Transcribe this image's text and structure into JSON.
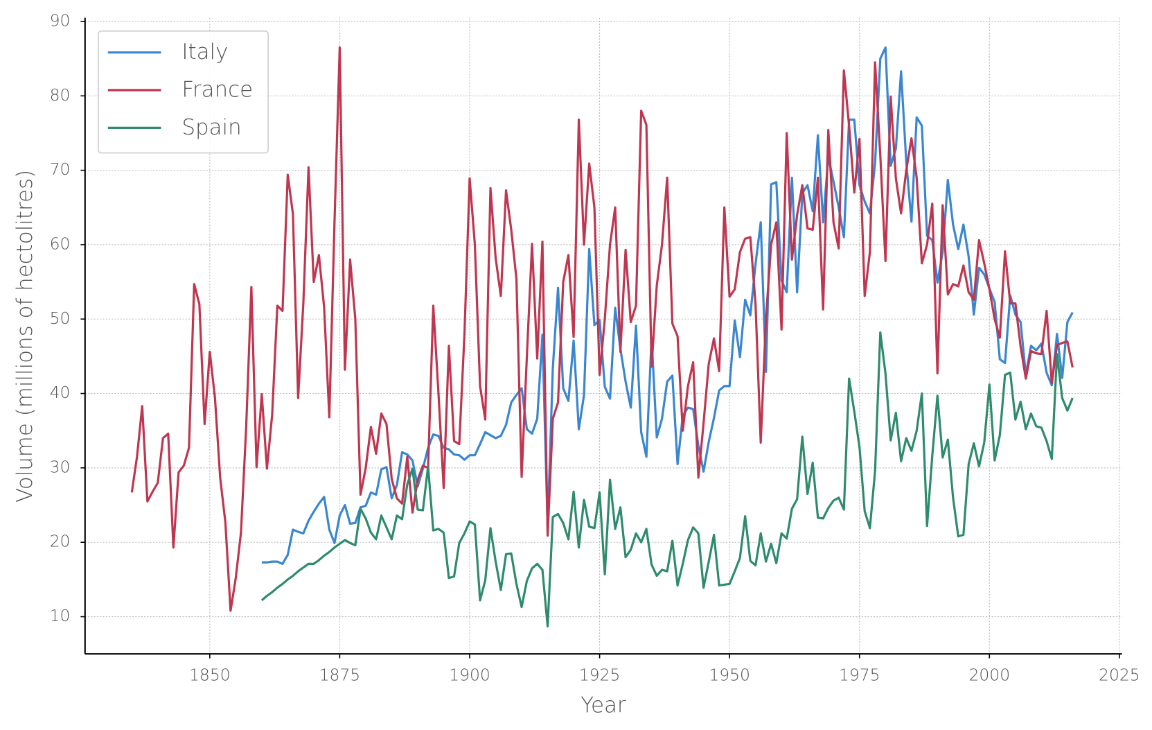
{
  "chart_data": {
    "type": "line",
    "xlabel": "Year",
    "ylabel": "Volume (millions of hectolitres)",
    "xlim": [
      1826,
      2025.5
    ],
    "ylim": [
      5,
      90.5
    ],
    "xticks": [
      1850,
      1875,
      1900,
      1925,
      1950,
      1975,
      2000,
      2025
    ],
    "yticks": [
      10,
      20,
      30,
      40,
      50,
      60,
      70,
      80,
      90
    ],
    "grid": true,
    "legend": "upper left",
    "x": [
      1835,
      1836,
      1837,
      1838,
      1839,
      1840,
      1841,
      1842,
      1843,
      1844,
      1845,
      1846,
      1847,
      1848,
      1849,
      1850,
      1851,
      1852,
      1853,
      1854,
      1855,
      1856,
      1857,
      1858,
      1859,
      1860,
      1861,
      1862,
      1863,
      1864,
      1865,
      1866,
      1867,
      1868,
      1869,
      1870,
      1871,
      1872,
      1873,
      1874,
      1875,
      1876,
      1877,
      1878,
      1879,
      1880,
      1881,
      1882,
      1883,
      1884,
      1885,
      1886,
      1887,
      1888,
      1889,
      1890,
      1891,
      1892,
      1893,
      1894,
      1895,
      1896,
      1897,
      1898,
      1899,
      1900,
      1901,
      1902,
      1903,
      1904,
      1905,
      1906,
      1907,
      1908,
      1909,
      1910,
      1911,
      1912,
      1913,
      1914,
      1915,
      1916,
      1917,
      1918,
      1919,
      1920,
      1921,
      1922,
      1923,
      1924,
      1925,
      1926,
      1927,
      1928,
      1929,
      1930,
      1931,
      1932,
      1933,
      1934,
      1935,
      1936,
      1937,
      1938,
      1939,
      1940,
      1941,
      1942,
      1943,
      1944,
      1945,
      1946,
      1947,
      1948,
      1949,
      1950,
      1951,
      1952,
      1953,
      1954,
      1955,
      1956,
      1957,
      1958,
      1959,
      1960,
      1961,
      1962,
      1963,
      1964,
      1965,
      1966,
      1967,
      1968,
      1969,
      1970,
      1971,
      1972,
      1973,
      1974,
      1975,
      1976,
      1977,
      1978,
      1979,
      1980,
      1981,
      1982,
      1983,
      1984,
      1985,
      1986,
      1987,
      1988,
      1989,
      1990,
      1991,
      1992,
      1993,
      1994,
      1995,
      1996,
      1997,
      1998,
      1999,
      2000,
      2001,
      2002,
      2003,
      2004,
      2005,
      2006,
      2007,
      2008,
      2009,
      2010,
      2011,
      2012,
      2013,
      2014,
      2015,
      2016
    ],
    "series": [
      {
        "name": "Italy",
        "color": "#3a86d0",
        "values": [
          null,
          null,
          null,
          null,
          null,
          null,
          null,
          null,
          null,
          null,
          null,
          null,
          null,
          null,
          null,
          null,
          null,
          null,
          null,
          null,
          null,
          null,
          null,
          null,
          null,
          17.3,
          17.3,
          17.4,
          17.4,
          17.1,
          18.3,
          21.7,
          21.4,
          21.2,
          22.9,
          24.1,
          25.2,
          26.1,
          21.7,
          19.9,
          23.6,
          25.0,
          22.5,
          22.6,
          24.7,
          24.9,
          26.7,
          26.4,
          29.8,
          30.1,
          25.9,
          27.7,
          32.1,
          31.8,
          31.0,
          27.5,
          29.9,
          32.7,
          34.5,
          34.3,
          32.7,
          32.5,
          31.8,
          31.7,
          31.1,
          31.7,
          31.7,
          33.2,
          34.8,
          34.4,
          34.0,
          34.3,
          35.8,
          38.8,
          39.8,
          40.7,
          35.2,
          34.6,
          36.6,
          47.9,
          22.0,
          43.4,
          54.2,
          40.7,
          39.0,
          47.1,
          35.2,
          39.8,
          59.4,
          49.2,
          49.9,
          40.9,
          39.3,
          51.5,
          46.0,
          41.6,
          38.1,
          49.1,
          34.8,
          31.5,
          47.5,
          34.1,
          36.6,
          41.6,
          42.4,
          30.5,
          37.0,
          38.1,
          37.9,
          33.0,
          29.5,
          33.5,
          36.7,
          40.4,
          41.0,
          41.0,
          49.8,
          44.9,
          52.6,
          50.5,
          57.4,
          63.0,
          42.9,
          68.1,
          68.4,
          55.2,
          53.6,
          69.0,
          53.6,
          66.9,
          68.0,
          64.5,
          74.7,
          63.0,
          71.8,
          68.5,
          65.0,
          61.0,
          76.8,
          76.8,
          68.0,
          65.8,
          64.2,
          71.0,
          85.0,
          86.5,
          70.6,
          72.9,
          83.3,
          71.1,
          63.1,
          77.1,
          76.0,
          61.2,
          60.6,
          54.9,
          59.0,
          68.7,
          62.7,
          59.4,
          62.7,
          58.4,
          50.6,
          56.9,
          56.0,
          54.1,
          52.3,
          44.6,
          44.1,
          53.2,
          50.6,
          49.6,
          42.5,
          46.4,
          45.8,
          46.7,
          42.8,
          41.1,
          48.0,
          42.1,
          49.6,
          50.9
        ]
      },
      {
        "name": "France",
        "color": "#c0354f",
        "values": [
          26.7,
          31.5,
          38.3,
          25.5,
          26.8,
          28.0,
          34.0,
          34.6,
          19.3,
          29.4,
          30.3,
          32.7,
          54.7,
          52.0,
          35.9,
          45.6,
          39.4,
          28.7,
          22.7,
          10.8,
          15.2,
          21.3,
          35.4,
          54.3,
          30.1,
          39.9,
          29.9,
          37.1,
          51.8,
          51.1,
          69.4,
          64.1,
          39.4,
          52.1,
          70.4,
          55.0,
          58.6,
          51.6,
          36.8,
          63.1,
          86.5,
          43.2,
          58.0,
          50.0,
          26.4,
          30.0,
          35.5,
          31.9,
          37.3,
          35.9,
          28.5,
          25.9,
          25.2,
          31.5,
          24.0,
          28.4,
          30.3,
          30.0,
          51.8,
          40.0,
          27.3,
          46.4,
          33.6,
          33.2,
          48.0,
          68.9,
          60.0,
          41.0,
          36.5,
          67.6,
          58.2,
          53.1,
          67.3,
          62.0,
          55.4,
          28.8,
          44.9,
          60.1,
          44.7,
          60.4,
          20.9,
          36.6,
          38.8,
          55.0,
          58.6,
          47.6,
          76.8,
          60.0,
          70.9,
          65.0,
          42.5,
          50.0,
          60.0,
          65.0,
          45.6,
          59.3,
          49.6,
          51.8,
          78.0,
          76.1,
          43.6,
          54.5,
          60.0,
          69.0,
          49.4,
          47.7,
          35.0,
          41.0,
          44.2,
          28.7,
          36.0,
          44.0,
          47.4,
          43.0,
          65.0,
          53.0,
          54.0,
          59.0,
          60.8,
          61.0,
          52.0,
          33.4,
          50.0,
          60.0,
          63.0,
          48.6,
          75.0,
          58.0,
          64.0,
          68.0,
          62.2,
          62.0,
          69.0,
          51.3,
          75.4,
          63.0,
          59.5,
          83.4,
          76.0,
          67.0,
          74.2,
          53.1,
          59.0,
          84.5,
          72.0,
          57.8,
          79.9,
          68.9,
          64.2,
          70.0,
          74.3,
          69.0,
          57.5,
          60.0,
          65.5,
          42.7,
          65.3,
          53.3,
          54.7,
          54.4,
          57.2,
          53.6,
          52.6,
          60.6,
          57.5,
          54.0,
          50.0,
          47.5,
          59.1,
          52.1,
          52.1,
          46.3,
          42.0,
          45.7,
          45.4,
          45.3,
          51.1,
          41.4,
          46.5,
          46.8,
          47.0,
          43.5
        ]
      },
      {
        "name": "Spain",
        "color": "#2e8b6e",
        "values": [
          null,
          null,
          null,
          null,
          null,
          null,
          null,
          null,
          null,
          null,
          null,
          null,
          null,
          null,
          null,
          null,
          null,
          null,
          null,
          null,
          null,
          null,
          null,
          null,
          null,
          12.2,
          12.8,
          13.3,
          13.9,
          14.4,
          15.0,
          15.5,
          16.1,
          16.6,
          17.1,
          17.1,
          17.6,
          18.2,
          18.7,
          19.3,
          19.8,
          20.3,
          19.9,
          19.6,
          24.5,
          23.2,
          21.3,
          20.4,
          23.6,
          22.0,
          20.4,
          23.6,
          23.1,
          27.8,
          29.9,
          24.4,
          24.3,
          30.2,
          21.6,
          21.8,
          21.3,
          15.2,
          15.4,
          19.9,
          21.2,
          22.8,
          22.4,
          12.2,
          14.9,
          21.9,
          17.4,
          13.6,
          18.4,
          18.5,
          14.4,
          11.3,
          14.8,
          16.5,
          17.1,
          16.3,
          8.7,
          23.4,
          23.8,
          22.6,
          20.4,
          26.8,
          19.3,
          25.7,
          22.1,
          21.9,
          26.7,
          15.7,
          28.4,
          21.8,
          24.7,
          18.0,
          19.0,
          21.2,
          20.0,
          21.8,
          17.0,
          15.5,
          16.3,
          16.1,
          20.2,
          14.2,
          17.1,
          20.3,
          22.0,
          21.2,
          13.9,
          17.4,
          21.0,
          14.2,
          14.3,
          14.4,
          16.1,
          17.9,
          23.5,
          17.5,
          16.9,
          21.2,
          17.4,
          19.8,
          17.2,
          21.2,
          20.5,
          24.5,
          25.8,
          34.2,
          26.5,
          30.7,
          23.3,
          23.2,
          24.6,
          25.6,
          26.0,
          24.4,
          42.0,
          37.6,
          32.8,
          24.2,
          21.9,
          29.6,
          48.2,
          42.7,
          33.7,
          37.4,
          30.9,
          34.0,
          32.3,
          35.0,
          40.0,
          22.2,
          31.6,
          39.7,
          31.4,
          33.8,
          26.0,
          20.8,
          21.0,
          30.5,
          33.3,
          30.2,
          33.4,
          41.2,
          31.0,
          34.4,
          42.5,
          42.8,
          36.5,
          38.9,
          35.2,
          37.3,
          35.6,
          35.4,
          33.6,
          31.2,
          45.3,
          39.4,
          37.7,
          39.4
        ]
      }
    ]
  }
}
